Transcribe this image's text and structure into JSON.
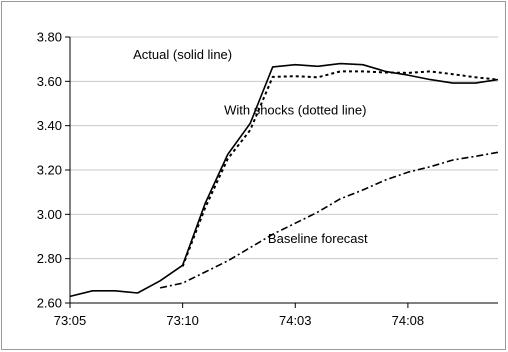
{
  "chart_data": {
    "type": "line",
    "title": "",
    "xlabel": "",
    "ylabel": "",
    "ylim": [
      2.6,
      3.8
    ],
    "y_ticks": [
      "3.80",
      "3.60",
      "3.40",
      "3.20",
      "3.00",
      "2.80",
      "2.60"
    ],
    "y_tick_values": [
      3.8,
      3.6,
      3.4,
      3.2,
      3.0,
      2.8,
      2.6
    ],
    "x_tick_labels": [
      "73:05",
      "73:10",
      "74:03",
      "74:08"
    ],
    "x_tick_positions": [
      "73:05",
      "73:10",
      "74:03",
      "74:08"
    ],
    "x": [
      "73:05",
      "73:06",
      "73:07",
      "73:08",
      "73:09",
      "73:10",
      "73:11",
      "73:12",
      "74:01",
      "74:02",
      "74:03",
      "74:04",
      "74:05",
      "74:06",
      "74:07",
      "74:08",
      "74:09",
      "74:10",
      "74:11",
      "74:12"
    ],
    "grid": true,
    "legend": "none",
    "series": [
      {
        "key": "actual",
        "style": "solid",
        "values": [
          2.63,
          2.655,
          2.655,
          2.645,
          2.7,
          2.77,
          3.05,
          3.27,
          3.41,
          3.665,
          3.675,
          3.668,
          3.68,
          3.675,
          3.645,
          3.628,
          3.608,
          3.592,
          3.592,
          3.608
        ]
      },
      {
        "key": "with_shocks",
        "style": "dotted",
        "values": [
          null,
          null,
          null,
          null,
          null,
          2.765,
          3.03,
          3.25,
          3.38,
          3.62,
          3.623,
          3.618,
          3.645,
          3.645,
          3.64,
          3.638,
          3.645,
          3.632,
          3.618,
          3.608
        ]
      },
      {
        "key": "baseline",
        "style": "dashdot",
        "values": [
          null,
          null,
          null,
          null,
          2.668,
          2.69,
          2.74,
          2.79,
          2.85,
          2.91,
          2.96,
          3.01,
          3.07,
          3.11,
          3.155,
          3.19,
          3.215,
          3.245,
          3.262,
          3.28
        ]
      }
    ],
    "annotations": [
      {
        "key": "actual",
        "text": "Actual (solid line)",
        "at_x": "73:10",
        "at_y": 3.7
      },
      {
        "key": "with_shocks",
        "text": "With shocks (dotted line)",
        "at_x": "74:03",
        "at_y": 3.45
      },
      {
        "key": "baseline",
        "text": "Baseline forecast",
        "at_x": "74:04",
        "at_y": 2.87
      }
    ],
    "colors": {
      "line": "#000000",
      "grid": "#c8c8c8",
      "axis": "#000000"
    }
  }
}
